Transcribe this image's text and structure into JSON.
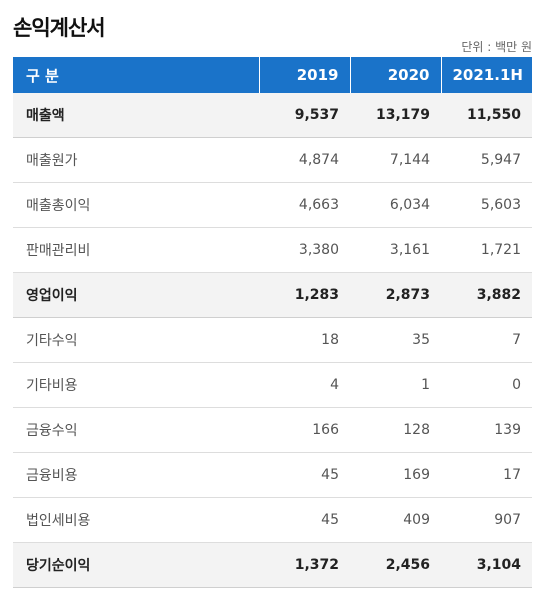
{
  "title": "손익계산서",
  "unit": "단위 : 백만 원",
  "header": {
    "label": "구 분",
    "years": [
      "2019",
      "2020",
      "2021.1H"
    ]
  },
  "rows": [
    {
      "label": "매출액",
      "values": [
        "9,537",
        "13,179",
        "11,550"
      ],
      "bold": true
    },
    {
      "label": "매출원가",
      "values": [
        "4,874",
        "7,144",
        "5,947"
      ],
      "bold": false
    },
    {
      "label": "매출총이익",
      "values": [
        "4,663",
        "6,034",
        "5,603"
      ],
      "bold": false
    },
    {
      "label": "판매관리비",
      "values": [
        "3,380",
        "3,161",
        "1,721"
      ],
      "bold": false
    },
    {
      "label": "영업이익",
      "values": [
        "1,283",
        "2,873",
        "3,882"
      ],
      "bold": true
    },
    {
      "label": "기타수익",
      "values": [
        "18",
        "35",
        "7"
      ],
      "bold": false
    },
    {
      "label": "기타비용",
      "values": [
        "4",
        "1",
        "0"
      ],
      "bold": false
    },
    {
      "label": "금융수익",
      "values": [
        "166",
        "128",
        "139"
      ],
      "bold": false
    },
    {
      "label": "금융비용",
      "values": [
        "45",
        "169",
        "17"
      ],
      "bold": false
    },
    {
      "label": "법인세비용",
      "values": [
        "45",
        "409",
        "907"
      ],
      "bold": false
    },
    {
      "label": "당기순이익",
      "values": [
        "1,372",
        "2,456",
        "3,104"
      ],
      "bold": true
    }
  ],
  "colors": {
    "header_bg": "#1a73c9",
    "highlight_row_bg": "#f3f3f3"
  }
}
